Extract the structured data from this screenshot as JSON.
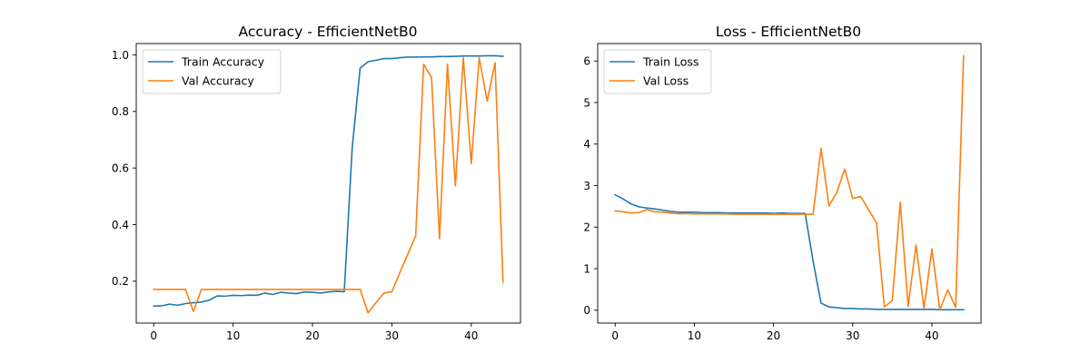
{
  "chart_data": [
    {
      "type": "line",
      "title": "Accuracy - EfficientNetB0",
      "xlabel": "",
      "ylabel": "",
      "xlim": [
        -2.2,
        46.2
      ],
      "ylim": [
        0.052,
        1.04
      ],
      "xticks": [
        0,
        10,
        20,
        30,
        40
      ],
      "xtick_labels": [
        "0",
        "10",
        "20",
        "30",
        "40"
      ],
      "yticks": [
        0.2,
        0.4,
        0.6,
        0.8,
        1.0
      ],
      "ytick_labels": [
        "0.2",
        "0.4",
        "0.6",
        "0.8",
        "1.0"
      ],
      "grid": false,
      "legend_position": "upper-left",
      "x": [
        0,
        1,
        2,
        3,
        4,
        5,
        6,
        7,
        8,
        9,
        10,
        11,
        12,
        13,
        14,
        15,
        16,
        17,
        18,
        19,
        20,
        21,
        22,
        23,
        24,
        25,
        26,
        27,
        28,
        29,
        30,
        31,
        32,
        33,
        34,
        35,
        36,
        37,
        38,
        39,
        40,
        41,
        42,
        43,
        44
      ],
      "series": [
        {
          "name": "Train Accuracy",
          "color": "#1f77b4",
          "values": [
            0.112,
            0.113,
            0.119,
            0.115,
            0.121,
            0.124,
            0.126,
            0.133,
            0.148,
            0.147,
            0.15,
            0.149,
            0.151,
            0.15,
            0.158,
            0.153,
            0.161,
            0.158,
            0.156,
            0.162,
            0.161,
            0.158,
            0.162,
            0.164,
            0.163,
            0.67,
            0.953,
            0.976,
            0.981,
            0.987,
            0.987,
            0.99,
            0.992,
            0.992,
            0.993,
            0.993,
            0.994,
            0.994,
            0.995,
            0.996,
            0.996,
            0.996,
            0.997,
            0.997,
            0.995
          ]
        },
        {
          "name": "Val Accuracy",
          "color": "#ff7f0e",
          "values": [
            0.171,
            0.171,
            0.171,
            0.171,
            0.171,
            0.093,
            0.171,
            0.171,
            0.171,
            0.171,
            0.171,
            0.171,
            0.171,
            0.171,
            0.171,
            0.171,
            0.171,
            0.171,
            0.171,
            0.171,
            0.171,
            0.171,
            0.171,
            0.171,
            0.171,
            0.171,
            0.171,
            0.088,
            0.124,
            0.158,
            0.163,
            0.23,
            0.295,
            0.36,
            0.967,
            0.92,
            0.35,
            0.967,
            0.537,
            0.99,
            0.615,
            0.99,
            0.837,
            0.972,
            0.197
          ]
        }
      ]
    },
    {
      "type": "line",
      "title": "Loss - EfficientNetB0",
      "xlabel": "",
      "ylabel": "",
      "xlim": [
        -2.2,
        46.2
      ],
      "ylim": [
        -0.31,
        6.42
      ],
      "xticks": [
        0,
        10,
        20,
        30,
        40
      ],
      "xtick_labels": [
        "0",
        "10",
        "20",
        "30",
        "40"
      ],
      "yticks": [
        0,
        1,
        2,
        3,
        4,
        5,
        6
      ],
      "ytick_labels": [
        "0",
        "1",
        "2",
        "3",
        "4",
        "5",
        "6"
      ],
      "grid": false,
      "legend_position": "upper-left",
      "x": [
        0,
        1,
        2,
        3,
        4,
        5,
        6,
        7,
        8,
        9,
        10,
        11,
        12,
        13,
        14,
        15,
        16,
        17,
        18,
        19,
        20,
        21,
        22,
        23,
        24,
        25,
        26,
        27,
        28,
        29,
        30,
        31,
        32,
        33,
        34,
        35,
        36,
        37,
        38,
        39,
        40,
        41,
        42,
        43,
        44
      ],
      "series": [
        {
          "name": "Train Loss",
          "color": "#1f77b4",
          "values": [
            2.78,
            2.68,
            2.56,
            2.49,
            2.46,
            2.44,
            2.41,
            2.38,
            2.36,
            2.36,
            2.36,
            2.35,
            2.35,
            2.35,
            2.34,
            2.34,
            2.34,
            2.34,
            2.34,
            2.34,
            2.33,
            2.34,
            2.33,
            2.33,
            2.33,
            1.18,
            0.17,
            0.08,
            0.06,
            0.04,
            0.04,
            0.03,
            0.03,
            0.02,
            0.02,
            0.02,
            0.02,
            0.02,
            0.02,
            0.02,
            0.02,
            0.01,
            0.01,
            0.01,
            0.01
          ]
        },
        {
          "name": "Val Loss",
          "color": "#ff7f0e",
          "values": [
            2.39,
            2.37,
            2.34,
            2.35,
            2.42,
            2.37,
            2.36,
            2.34,
            2.32,
            2.33,
            2.32,
            2.32,
            2.32,
            2.32,
            2.32,
            2.31,
            2.31,
            2.31,
            2.31,
            2.31,
            2.31,
            2.31,
            2.31,
            2.31,
            2.31,
            2.31,
            3.9,
            2.51,
            2.84,
            3.4,
            2.69,
            2.74,
            2.42,
            2.11,
            0.08,
            0.23,
            2.6,
            0.09,
            1.57,
            0.04,
            1.47,
            0.01,
            0.49,
            0.07,
            6.13
          ]
        }
      ]
    }
  ]
}
